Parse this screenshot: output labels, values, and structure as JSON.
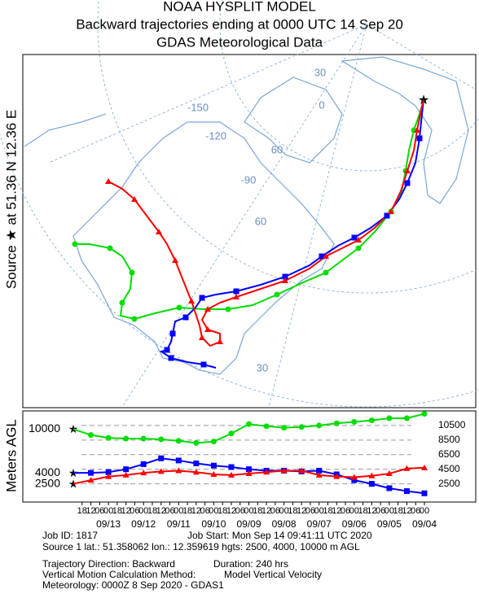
{
  "header": {
    "title": "NOAA HYSPLIT MODEL",
    "subtitle": "Backward trajectories ending at 0000 UTC 14 Sep 20",
    "meteorology": "GDAS Meteorological Data"
  },
  "source_label": "Source ★ at    51.36 N    12.36 E",
  "map_labels": [
    "30",
    "-150",
    "0",
    "-120",
    "60",
    "-90",
    "60",
    "30"
  ],
  "chart_data": {
    "type": "line",
    "y_title": "Meters AGL",
    "ylim": [
      0,
      12500
    ],
    "yticks": [
      2500,
      4500,
      6500,
      8500,
      10500
    ],
    "source_heights": [
      10000,
      4000,
      2500
    ],
    "xtick_hours": [
      "18",
      "12",
      "06",
      "00",
      "18",
      "12",
      "06",
      "00",
      "18",
      "12",
      "06",
      "00",
      "18",
      "12",
      "06",
      "00",
      "18",
      "12",
      "06",
      "00",
      "18",
      "12",
      "06",
      "00",
      "18",
      "12",
      "06",
      "00",
      "18",
      "12",
      "06",
      "00",
      "18",
      "12",
      "06",
      "00",
      "18",
      "12",
      "06",
      "00"
    ],
    "xtick_dates": [
      "09/13",
      "09/12",
      "09/11",
      "09/10",
      "09/09",
      "09/08",
      "09/07",
      "09/06",
      "09/05",
      "09/04"
    ],
    "series": [
      {
        "color": "#00dd00",
        "marker": "circle",
        "values": [
          10000,
          9200,
          8800,
          8700,
          8700,
          8600,
          8400,
          8100,
          8300,
          9400,
          10700,
          10400,
          10200,
          10300,
          10500,
          10800,
          11000,
          11200,
          11500,
          11500,
          12100
        ]
      },
      {
        "color": "#0000ff",
        "marker": "square",
        "values": [
          4000,
          4000,
          4100,
          4500,
          5200,
          6000,
          5700,
          5300,
          5000,
          4800,
          4500,
          4300,
          4300,
          4200,
          4300,
          3800,
          3000,
          2500,
          1900,
          1500,
          1200
        ]
      },
      {
        "color": "#ff0000",
        "marker": "triangle",
        "values": [
          2500,
          3000,
          3500,
          3700,
          4000,
          4200,
          4300,
          4100,
          3800,
          3700,
          3900,
          4100,
          4300,
          4300,
          3700,
          3500,
          3400,
          3600,
          3900,
          4600,
          4700
        ]
      }
    ]
  },
  "footer": {
    "job_id": "Job ID: 1817",
    "job_start": "Job Start: Mon Sep 14 09:41:11 UTC 2020",
    "source": "Source 1 lat.: 51.358062  lon.: 12.359619  hgts: 2500, 4000, 10000 m AGL",
    "direction": "Trajectory Direction: Backward",
    "duration": "Duration: 240 hrs",
    "vertical_method": "Vertical Motion Calculation Method:",
    "vertical_model": "Model Vertical Velocity",
    "meteorology": "Meteorology: 0000Z  8 Sep 2020 - GDAS1"
  }
}
